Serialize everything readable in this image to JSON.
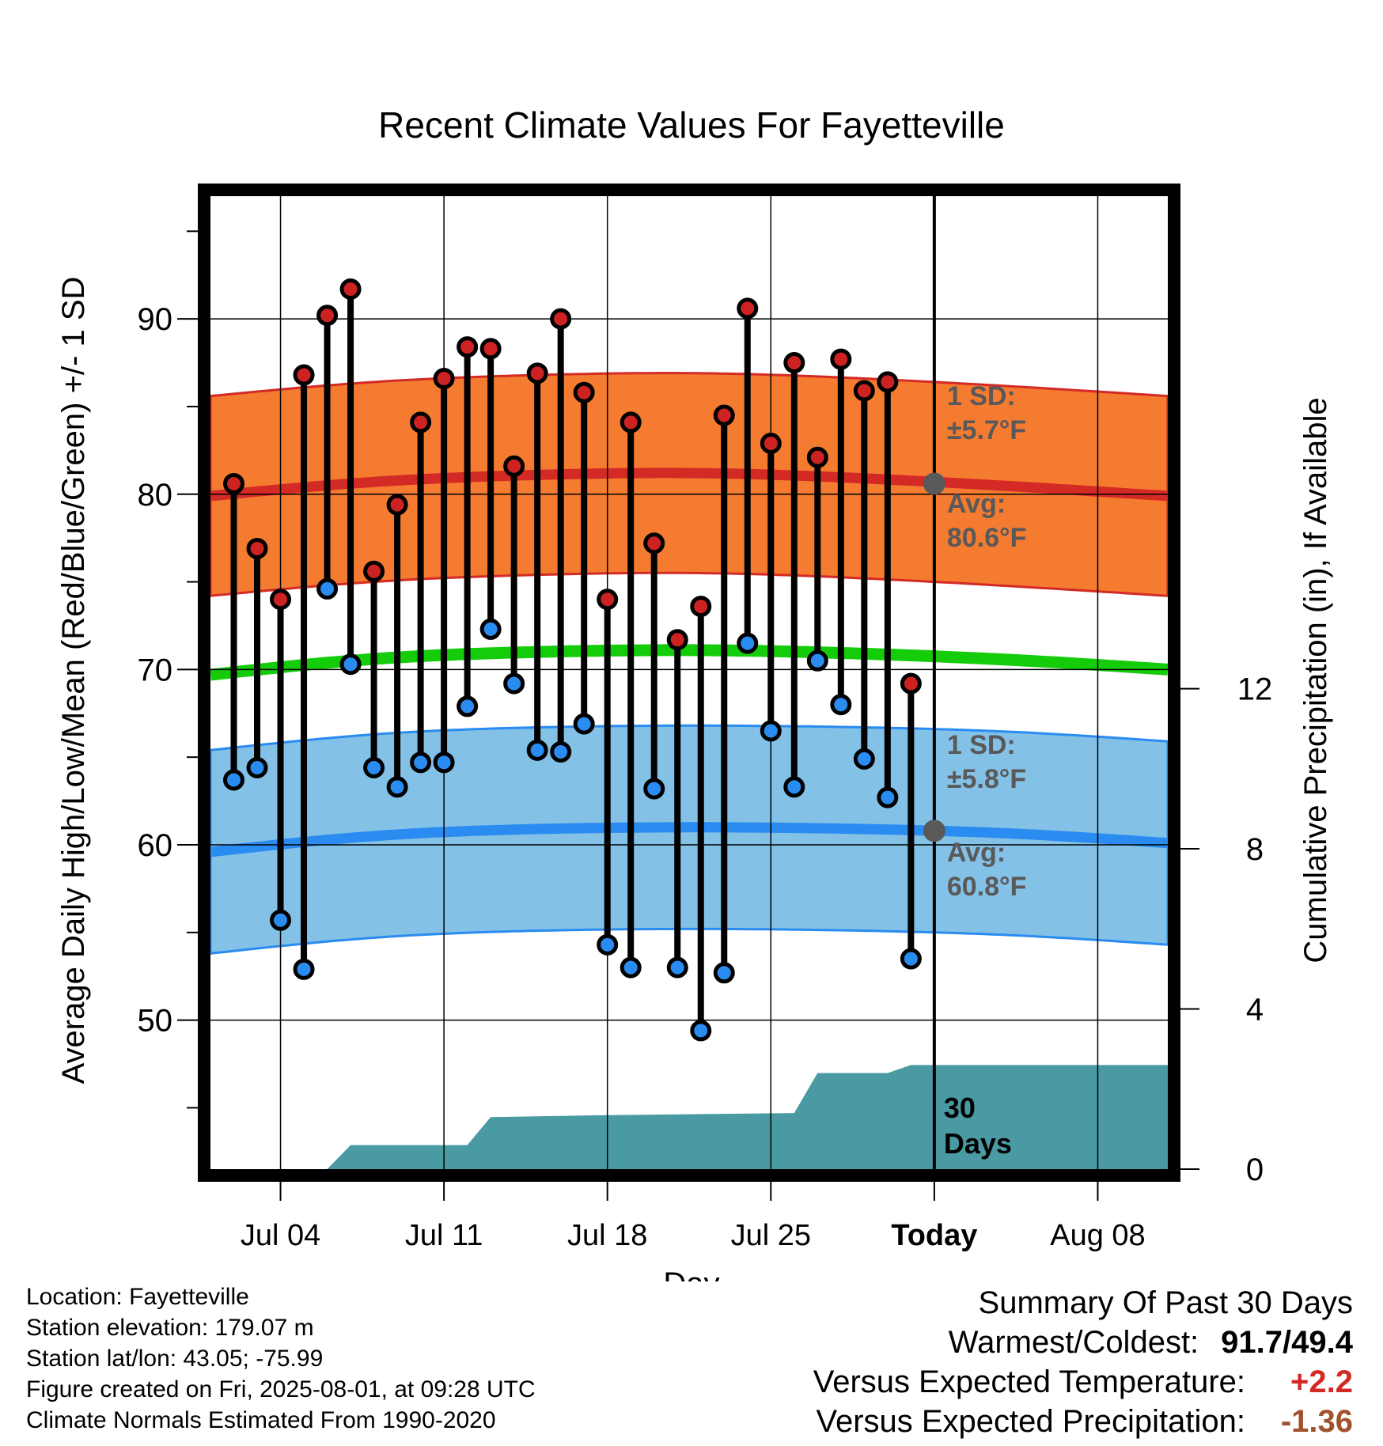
{
  "chart_data": {
    "type": "line",
    "title": "Recent Climate Values For Fayetteville",
    "xlabel": "Day",
    "ylabel": "Average Daily High/Low/Mean (Red/Blue/Green) +/- 1 SD",
    "y2label": "Cumulative Precipitation (in), If Available",
    "x_range": [
      "2025-07-01",
      "2025-08-11"
    ],
    "ylim": [
      41.5,
      97
    ],
    "y_ticks": [
      50,
      60,
      70,
      80,
      90
    ],
    "y2lim": [
      0,
      24.3
    ],
    "y2_ticks": [
      0,
      4,
      8,
      12
    ],
    "x_ticks": [
      {
        "date": "2025-07-04",
        "label": "Jul 04"
      },
      {
        "date": "2025-07-11",
        "label": "Jul 11"
      },
      {
        "date": "2025-07-18",
        "label": "Jul 18"
      },
      {
        "date": "2025-07-25",
        "label": "Jul 25"
      },
      {
        "date": "2025-08-01",
        "label": "Today"
      },
      {
        "date": "2025-08-08",
        "label": "Aug 08"
      }
    ],
    "grid": true,
    "today": "2025-08-01",
    "daily": {
      "dates": [
        "2025-07-02",
        "2025-07-03",
        "2025-07-04",
        "2025-07-05",
        "2025-07-06",
        "2025-07-07",
        "2025-07-08",
        "2025-07-09",
        "2025-07-10",
        "2025-07-11",
        "2025-07-12",
        "2025-07-13",
        "2025-07-14",
        "2025-07-15",
        "2025-07-16",
        "2025-07-17",
        "2025-07-18",
        "2025-07-19",
        "2025-07-20",
        "2025-07-21",
        "2025-07-22",
        "2025-07-23",
        "2025-07-24",
        "2025-07-25",
        "2025-07-26",
        "2025-07-27",
        "2025-07-28",
        "2025-07-29",
        "2025-07-30",
        "2025-07-31"
      ],
      "highs": [
        80.6,
        76.9,
        74.0,
        86.8,
        90.2,
        91.7,
        75.6,
        79.4,
        84.1,
        86.6,
        88.4,
        88.3,
        81.6,
        86.9,
        90.0,
        85.8,
        74.0,
        84.1,
        77.2,
        71.7,
        73.6,
        84.5,
        90.6,
        82.9,
        87.5,
        82.1,
        87.7,
        85.9,
        86.4,
        69.2
      ],
      "lows": [
        63.7,
        64.4,
        55.7,
        52.9,
        74.6,
        70.3,
        64.4,
        63.3,
        64.7,
        64.7,
        67.9,
        72.3,
        69.2,
        65.4,
        65.3,
        66.9,
        54.3,
        53.0,
        63.2,
        53.0,
        49.4,
        52.7,
        71.5,
        66.5,
        63.3,
        70.5,
        68.0,
        64.9,
        62.7,
        53.5
      ]
    },
    "normals": {
      "dates": [
        "2025-07-01",
        "2025-07-08",
        "2025-07-15",
        "2025-07-22",
        "2025-07-29",
        "2025-08-05",
        "2025-08-11"
      ],
      "high_avg": [
        79.9,
        80.7,
        81.1,
        81.2,
        80.9,
        80.4,
        79.9
      ],
      "high_sd": 5.7,
      "low_avg": [
        59.6,
        60.5,
        60.9,
        61.0,
        60.9,
        60.6,
        60.1
      ],
      "low_sd": 5.8,
      "mean_avg": [
        69.7,
        70.6,
        71.0,
        71.1,
        70.9,
        70.5,
        70.0
      ]
    },
    "precip": {
      "dates": [
        "2025-07-01",
        "2025-07-06",
        "2025-07-07",
        "2025-07-12",
        "2025-07-13",
        "2025-07-18",
        "2025-07-26",
        "2025-07-27",
        "2025-07-30",
        "2025-07-31",
        "2025-08-11"
      ],
      "values": [
        0,
        0,
        0.6,
        0.6,
        1.3,
        1.35,
        1.4,
        2.4,
        2.4,
        2.6,
        2.6
      ]
    },
    "annotations": {
      "high_sd": [
        "1 SD:",
        "±5.7°F"
      ],
      "high_avg": [
        "Avg:",
        "80.6°F"
      ],
      "low_sd": [
        "1 SD:",
        "±5.8°F"
      ],
      "low_avg": [
        "Avg:",
        "60.8°F"
      ],
      "days": [
        "30",
        "Days"
      ]
    },
    "today_high_avg": 80.6,
    "today_low_avg": 60.8,
    "colors": {
      "high_band": "#f47b30",
      "high_line": "#d42a26",
      "low_band": "#84c1e6",
      "low_line": "#2a8cf0",
      "mean_line": "#14cc0a",
      "precip": "#4a9aa3",
      "high_dot": "#cc2222",
      "low_dot": "#2a8cf0",
      "marker": "#595959"
    }
  },
  "station": {
    "location": "Location: Fayetteville",
    "elevation": "Station elevation: 179.07 m",
    "latlon": "Station lat/lon: 43.05; -75.99",
    "created": "Figure created on Fri, 2025-08-01, at 09:28 UTC",
    "normals_note": "Climate Normals Estimated From 1990-2020"
  },
  "summary": {
    "title": "Summary Of Past 30 Days",
    "warm_cold_label": "Warmest/Coldest:",
    "warm_cold_value": "91.7/49.4",
    "temp_label": "Versus Expected Temperature:",
    "temp_value": "+2.2",
    "temp_color": "#d42a26",
    "precip_label": "Versus Expected Precipitation:",
    "precip_value": "-1.36",
    "precip_color": "#a0522d"
  }
}
